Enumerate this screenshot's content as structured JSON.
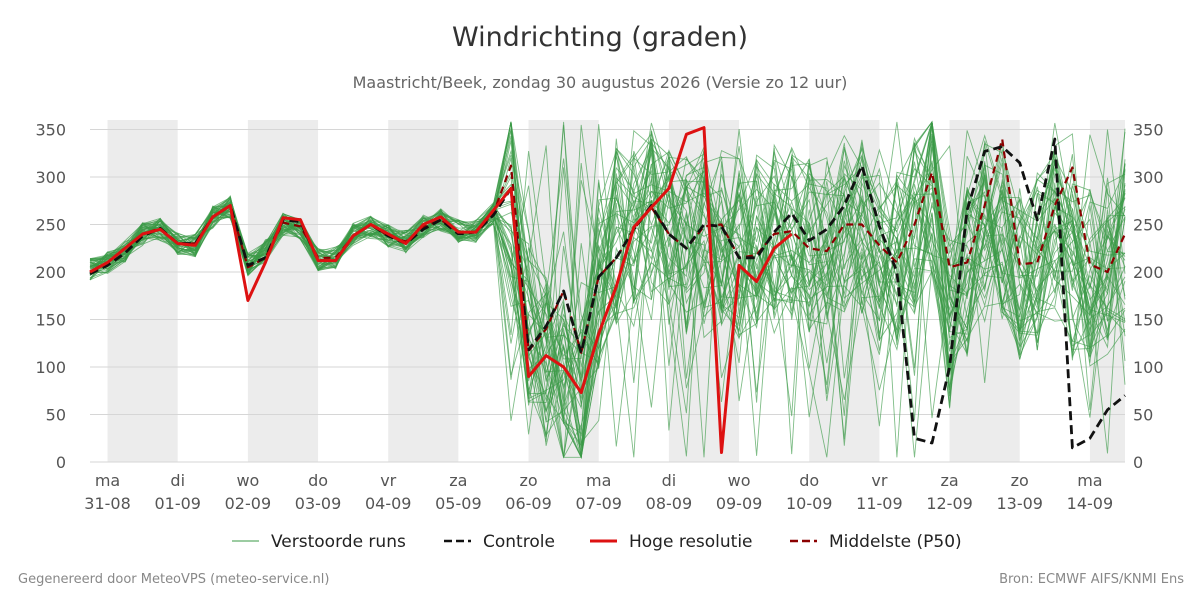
{
  "chart_data": {
    "type": "line",
    "title": "Windrichting (graden)",
    "subtitle": "Maastricht/Beek, zondag 30 augustus 2026 (Versie zo 12 uur)",
    "ylim": [
      0,
      360
    ],
    "yticks": [
      0,
      50,
      100,
      150,
      200,
      250,
      300,
      350
    ],
    "xlim": [
      -0.25,
      14.5
    ],
    "day_labels": [
      {
        "day": "ma",
        "date": "31-08"
      },
      {
        "day": "di",
        "date": "01-09"
      },
      {
        "day": "wo",
        "date": "02-09"
      },
      {
        "day": "do",
        "date": "03-09"
      },
      {
        "day": "vr",
        "date": "04-09"
      },
      {
        "day": "za",
        "date": "05-09"
      },
      {
        "day": "zo",
        "date": "06-09"
      },
      {
        "day": "ma",
        "date": "07-09"
      },
      {
        "day": "di",
        "date": "08-09"
      },
      {
        "day": "wo",
        "date": "09-09"
      },
      {
        "day": "do",
        "date": "10-09"
      },
      {
        "day": "vr",
        "date": "11-09"
      },
      {
        "day": "za",
        "date": "12-09"
      },
      {
        "day": "zo",
        "date": "13-09"
      },
      {
        "day": "ma",
        "date": "14-09"
      }
    ],
    "shaded_days": [
      0,
      2,
      4,
      6,
      8,
      10,
      12,
      14
    ],
    "grid": true,
    "legend_position": "bottom-center",
    "series": [
      {
        "name": "Verstoorde runs",
        "role": "ensemble",
        "color": "#3a9a46",
        "members": 50,
        "x": [
          -0.25,
          0,
          0.25,
          0.5,
          0.75,
          1,
          1.25,
          1.5,
          1.75,
          2,
          2.25,
          2.5,
          2.75,
          3,
          3.25,
          3.5,
          3.75,
          4,
          4.25,
          4.5,
          4.75,
          5,
          5.25,
          5.5,
          5.75,
          6,
          6.25,
          6.5,
          6.75,
          7,
          7.25,
          7.5,
          7.75,
          8,
          8.25,
          8.5,
          8.75,
          9,
          9.25,
          9.5,
          9.75,
          10,
          10.25,
          10.5,
          10.75,
          11,
          11.25,
          11.5,
          11.75,
          12,
          12.25,
          12.5,
          12.75,
          13,
          13.25,
          13.5,
          13.75,
          14,
          14.25,
          14.5
        ],
        "y": [
          203,
          210,
          222,
          240,
          245,
          230,
          228,
          258,
          268,
          208,
          222,
          250,
          245,
          213,
          215,
          240,
          247,
          238,
          232,
          248,
          255,
          243,
          243,
          262,
          285,
          150,
          100,
          80,
          60,
          190,
          240,
          255,
          262,
          238,
          228,
          240,
          238,
          225,
          228,
          240,
          236,
          230,
          238,
          252,
          248,
          222,
          212,
          250,
          290,
          150,
          200,
          250,
          245,
          200,
          210,
          240,
          200,
          195,
          205,
          230
        ]
      },
      {
        "name": "Controle",
        "role": "control",
        "color": "#111111",
        "x": [
          -0.25,
          0,
          0.25,
          0.5,
          0.75,
          1,
          1.25,
          1.5,
          1.75,
          2,
          2.25,
          2.5,
          2.75,
          3,
          3.25,
          3.5,
          3.75,
          4,
          4.25,
          4.5,
          4.75,
          5,
          5.25,
          5.5,
          5.75,
          6,
          6.25,
          6.5,
          6.75,
          7,
          7.25,
          7.5,
          7.75,
          8,
          8.25,
          8.5,
          8.75,
          9,
          9.25,
          9.5,
          9.75,
          10,
          10.25,
          10.5,
          10.75,
          11,
          11.25,
          11.5,
          11.75,
          12,
          12.25,
          12.5,
          12.75,
          13,
          13.25,
          13.5,
          13.75,
          14,
          14.25,
          14.5
        ],
        "y": [
          198,
          207,
          220,
          238,
          246,
          230,
          230,
          258,
          270,
          207,
          215,
          255,
          253,
          212,
          212,
          238,
          250,
          238,
          230,
          245,
          255,
          240,
          242,
          260,
          288,
          118,
          143,
          180,
          115,
          195,
          215,
          245,
          270,
          240,
          225,
          250,
          248,
          215,
          215,
          242,
          262,
          233,
          245,
          270,
          312,
          248,
          200,
          25,
          20,
          100,
          265,
          327,
          332,
          315,
          255,
          340,
          15,
          25,
          55,
          70
        ]
      },
      {
        "name": "Hoge resolutie",
        "role": "high-res",
        "color": "#dd1111",
        "x": [
          -0.25,
          0,
          0.25,
          0.5,
          0.75,
          1,
          1.25,
          1.5,
          1.75,
          2,
          2.25,
          2.5,
          2.75,
          3,
          3.25,
          3.5,
          3.75,
          4,
          4.25,
          4.5,
          4.75,
          5,
          5.25,
          5.5,
          5.75,
          6,
          6.25,
          6.5,
          6.75,
          7,
          7.25,
          7.5,
          7.75,
          8,
          8.25,
          8.5,
          8.75,
          9,
          9.25,
          9.5,
          9.75
        ],
        "y": [
          200,
          210,
          225,
          240,
          245,
          230,
          228,
          258,
          270,
          170,
          210,
          257,
          255,
          212,
          212,
          238,
          250,
          240,
          230,
          250,
          258,
          242,
          242,
          265,
          288,
          90,
          112,
          100,
          73,
          135,
          185,
          247,
          268,
          288,
          345,
          352,
          10,
          207,
          190,
          225,
          240
        ]
      },
      {
        "name": "Middelste (P50)",
        "role": "median",
        "color": "#8b0000",
        "x": [
          -0.25,
          0,
          0.25,
          0.5,
          0.75,
          1,
          1.25,
          1.5,
          1.75,
          2,
          2.25,
          2.5,
          2.75,
          3,
          3.25,
          3.5,
          3.75,
          4,
          4.25,
          4.5,
          4.75,
          5,
          5.25,
          5.5,
          5.75,
          6,
          6.25,
          6.5,
          6.75,
          7,
          7.25,
          7.5,
          7.75,
          8,
          8.25,
          8.5,
          8.75,
          9,
          9.25,
          9.5,
          9.75,
          10,
          10.25,
          10.5,
          10.75,
          11,
          11.25,
          11.5,
          11.75,
          12,
          12.25,
          12.5,
          12.75,
          13,
          13.25,
          13.5,
          13.75,
          14,
          14.25,
          14.5
        ],
        "y": [
          200,
          210,
          225,
          240,
          246,
          230,
          230,
          258,
          270,
          205,
          215,
          252,
          248,
          215,
          215,
          238,
          250,
          238,
          232,
          247,
          255,
          242,
          242,
          262,
          312,
          117,
          140,
          180,
          115,
          195,
          215,
          245,
          268,
          240,
          225,
          248,
          250,
          215,
          218,
          240,
          243,
          225,
          222,
          250,
          250,
          228,
          210,
          250,
          305,
          205,
          210,
          270,
          340,
          208,
          210,
          270,
          310,
          208,
          200,
          240
        ]
      }
    ],
    "legend": [
      {
        "label": "Verstoorde runs",
        "color": "#3a9a46",
        "style": "thin"
      },
      {
        "label": "Controle",
        "color": "#111111",
        "style": "dashed"
      },
      {
        "label": "Hoge resolutie",
        "color": "#dd1111",
        "style": "solid"
      },
      {
        "label": "Middelste (P50)",
        "color": "#8b0000",
        "style": "dashed"
      }
    ],
    "footer_left": "Gegenereerd door MeteoVPS (meteo-service.nl)",
    "footer_right": "Bron: ECMWF AIFS/KNMI Ens"
  }
}
